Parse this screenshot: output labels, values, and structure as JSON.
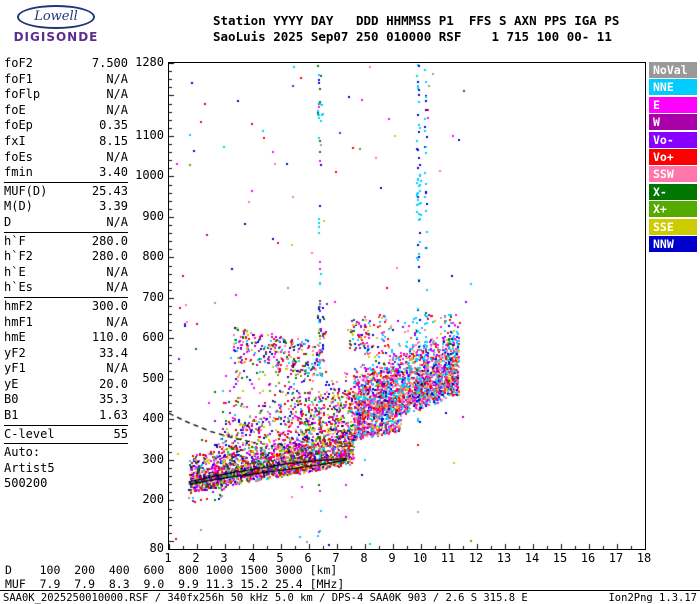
{
  "logo": {
    "line1": "Lowell",
    "line2": "DIGISONDE"
  },
  "header": {
    "line1": "Station YYYY DAY   DDD HHMMSS P1  FFS S AXN PPS IGA PS",
    "line2": "SaoLuis 2025 Sep07 250 010000 RSF    1 715 100 00- 11"
  },
  "params": {
    "groups": [
      {
        "rows": [
          {
            "l": "foF2",
            "v": "7.500"
          },
          {
            "l": "foF1",
            "v": "N/A"
          },
          {
            "l": "foFlp",
            "v": "N/A"
          },
          {
            "l": "foE",
            "v": "N/A"
          },
          {
            "l": "foEp",
            "v": "0.35"
          },
          {
            "l": "fxI",
            "v": "8.15"
          },
          {
            "l": "foEs",
            "v": "N/A"
          },
          {
            "l": "fmin",
            "v": "3.40"
          }
        ]
      },
      {
        "rows": [
          {
            "l": "MUF(D)",
            "v": "25.43"
          },
          {
            "l": "M(D)",
            "v": "3.39"
          },
          {
            "l": "D",
            "v": "N/A"
          }
        ]
      },
      {
        "rows": [
          {
            "l": "h`F",
            "v": "280.0"
          },
          {
            "l": "h`F2",
            "v": "280.0"
          },
          {
            "l": "h`E",
            "v": "N/A"
          },
          {
            "l": "h`Es",
            "v": "N/A"
          }
        ]
      },
      {
        "rows": [
          {
            "l": "hmF2",
            "v": "300.0"
          },
          {
            "l": "hmF1",
            "v": "N/A"
          },
          {
            "l": "hmE",
            "v": "110.0"
          },
          {
            "l": "yF2",
            "v": "33.4"
          },
          {
            "l": "yF1",
            "v": "N/A"
          },
          {
            "l": "yE",
            "v": "20.0"
          },
          {
            "l": "B0",
            "v": "35.3"
          },
          {
            "l": "B1",
            "v": "1.63"
          }
        ]
      },
      {
        "rows": [
          {
            "l": "C-level",
            "v": "55"
          }
        ]
      },
      {
        "rows": [
          {
            "l": "Auto:",
            "v": ""
          },
          {
            "l": "Artist5",
            "v": ""
          },
          {
            "l": "500200",
            "v": ""
          }
        ]
      }
    ]
  },
  "legend": [
    {
      "label": "NoVal",
      "color": "#999999"
    },
    {
      "label": "NNE",
      "color": "#00CCFF"
    },
    {
      "label": "E",
      "color": "#FF00FF"
    },
    {
      "label": "W",
      "color": "#AA00AA"
    },
    {
      "label": "Vo-",
      "color": "#8800FF"
    },
    {
      "label": "Vo+",
      "color": "#FF0000"
    },
    {
      "label": "SSW",
      "color": "#FF77AA"
    },
    {
      "label": "X-",
      "color": "#007700"
    },
    {
      "label": "X+",
      "color": "#55AA00"
    },
    {
      "label": "SSE",
      "color": "#CCCC00"
    },
    {
      "label": "NNW",
      "color": "#0000CC"
    }
  ],
  "footer": {
    "d_line": "D    100  200  400  600  800 1000 1500 3000 [km]",
    "muf_line": "MUF  7.9  7.9  8.3  9.0  9.9 11.3 15.2 25.4 [MHz]"
  },
  "statusbar": {
    "left": "SAA0K_2025250010000.RSF / 340fx256h 50 kHz 5.0 km / DPS-4 SAA0K 903 / 2.6 S 315.8 E",
    "right": "Ion2Png 1.3.17"
  },
  "chart_data": {
    "type": "scatter",
    "title": "",
    "xlabel": "",
    "ylabel": "",
    "xlim": [
      1,
      18
    ],
    "ylim": [
      80,
      1280
    ],
    "x_ticks": [
      1,
      2,
      3,
      4,
      5,
      6,
      7,
      8,
      9,
      10,
      11,
      12,
      13,
      14,
      15,
      16,
      17,
      18
    ],
    "y_tick_labels": [
      1280,
      1100,
      1000,
      900,
      800,
      700,
      600,
      500,
      400,
      300,
      200,
      80
    ],
    "x_minor_step": 0.5,
    "y_minor_step": 20,
    "point_size": 2,
    "seed": 42,
    "palettes": {
      "mix": [
        "#FF0000",
        "#FF0000",
        "#E00000",
        "#FF00FF",
        "#FF00FF",
        "#AA00AA",
        "#0000CC",
        "#0000CC",
        "#8800FF",
        "#007700",
        "#007700",
        "#55AA00",
        "#CCCC00",
        "#CCCC00",
        "#FF77AA",
        "#FF77AA",
        "#00CCFF",
        "#999999"
      ],
      "right": [
        "#00CCFF",
        "#00CCFF",
        "#00CCFF",
        "#FF0000",
        "#FF0000",
        "#FF4444",
        "#FF77AA",
        "#FF77AA",
        "#FF00FF",
        "#0000CC",
        "#CCCC00",
        "#8800FF"
      ],
      "diag": [
        "#FF00FF",
        "#FF0000",
        "#8800FF",
        "#007700",
        "#CCCC00",
        "#0000CC",
        "#FF77AA",
        "#00CCFF",
        "#AA00AA"
      ],
      "cyan": [
        "#00CCFF"
      ],
      "cyanblue": [
        "#00CCFF",
        "#00CCFF",
        "#0000CC"
      ],
      "darkcol": [
        "#0000CC",
        "#007700",
        "#00CCFF"
      ],
      "rfi": [
        "#00CCFF",
        "#00CCFF",
        "#0000CC",
        "#FF00FF",
        "#007700"
      ]
    },
    "clusters": [
      {
        "name": "F-trace core",
        "mode": "trace",
        "count": 2000,
        "x": [
          1.75,
          7.6
        ],
        "a": 232,
        "b": 12,
        "jitter": 14,
        "spread": 70,
        "pow": 2.2,
        "palette": "mix"
      },
      {
        "name": "F-trace spread",
        "mode": "trace",
        "count": 600,
        "x": [
          2.6,
          7.6
        ],
        "a": 258,
        "b": 14,
        "jitter": 20,
        "spread": 130,
        "pow": 1.6,
        "palette": "mix"
      },
      {
        "name": "mid scatter",
        "mode": "box",
        "count": 240,
        "x": [
          2.9,
          7.7
        ],
        "y": [
          360,
          520
        ],
        "palette": "mix"
      },
      {
        "name": "mid scatter right",
        "mode": "box",
        "count": 180,
        "x": [
          5.2,
          7.7
        ],
        "y": [
          350,
          470
        ],
        "palette": "mix"
      },
      {
        "name": "upper diagonal band",
        "mode": "trace",
        "count": 280,
        "x": [
          3.3,
          6.5
        ],
        "a": 585,
        "b": -12,
        "jitter": 42,
        "spread": 0,
        "pow": 1,
        "palette": "diag"
      },
      {
        "name": "right dense cluster",
        "mode": "trace",
        "count": 2300,
        "x": [
          7.6,
          11.35
        ],
        "a": 385,
        "b": 26,
        "jitter": 25,
        "spread": 120,
        "pow": 1.8,
        "palette": "right"
      },
      {
        "name": "right lower edge",
        "mode": "trace",
        "count": 200,
        "x": [
          7.6,
          9.3
        ],
        "a": 362,
        "b": 14,
        "jitter": 15,
        "spread": 0,
        "pow": 1,
        "palette": "right"
      },
      {
        "name": "right upper sparse",
        "mode": "box",
        "count": 150,
        "x": [
          8.0,
          11.4
        ],
        "y": [
          545,
          660
        ],
        "palette": "right"
      },
      {
        "name": "blob 7.8MHz 600km",
        "mode": "box",
        "count": 60,
        "x": [
          7.4,
          8.2
        ],
        "y": [
          570,
          645
        ],
        "palette": "diag"
      },
      {
        "name": "RFI line 6.4MHz",
        "mode": "vline",
        "count": 55,
        "cx": 6.38,
        "wx": 0.1,
        "y": [
          95,
          1275
        ],
        "palette": "rfi"
      },
      {
        "name": "6.4MHz colored blob",
        "mode": "vline",
        "count": 30,
        "cx": 6.45,
        "wx": 0.3,
        "y": [
          540,
          680
        ],
        "palette": "diag"
      },
      {
        "name": "RFI line 9.9MHz",
        "mode": "vline",
        "count": 60,
        "cx": 9.92,
        "wx": 0.12,
        "y": [
          390,
          1275
        ],
        "palette": "cyanblue"
      },
      {
        "name": "RFI line 10.2MHz",
        "mode": "vline",
        "count": 35,
        "cx": 10.18,
        "wx": 0.1,
        "y": [
          430,
          1270
        ],
        "palette": "cyanblue"
      },
      {
        "name": "streak 11MHz",
        "mode": "vline",
        "count": 30,
        "cx": 11.05,
        "wx": 0.15,
        "y": [
          470,
          660
        ],
        "palette": "darkcol"
      },
      {
        "name": "background noise",
        "mode": "box",
        "count": 130,
        "x": [
          1.1,
          11.8
        ],
        "y": [
          90,
          1275
        ],
        "palette": "mix"
      },
      {
        "name": "cyan patch 9.9 high",
        "mode": "box",
        "count": 14,
        "x": [
          9.85,
          10.0
        ],
        "y": [
          900,
          1010
        ],
        "palette": "cyan"
      },
      {
        "name": "cyan patch 6.4 high",
        "mode": "box",
        "count": 8,
        "x": [
          6.3,
          6.5
        ],
        "y": [
          1120,
          1180
        ],
        "palette": "cyan"
      },
      {
        "name": "below trace left",
        "mode": "box",
        "count": 20,
        "x": [
          1.7,
          3.2
        ],
        "y": [
          195,
          235
        ],
        "palette": "mix"
      }
    ],
    "curves": [
      {
        "style": "solid",
        "points": [
          [
            1.7,
            240
          ],
          [
            3.2,
            258
          ],
          [
            5.2,
            276
          ],
          [
            6.6,
            290
          ],
          [
            7.35,
            300
          ]
        ]
      },
      {
        "style": "solid",
        "points": [
          [
            1.7,
            246
          ],
          [
            3.2,
            268
          ],
          [
            5.2,
            290
          ],
          [
            6.6,
            300
          ],
          [
            7.35,
            303
          ]
        ]
      },
      {
        "style": "dashed",
        "points": [
          [
            1.0,
            415
          ],
          [
            1.7,
            392
          ],
          [
            2.5,
            370
          ],
          [
            3.3,
            354
          ],
          [
            4.1,
            342
          ]
        ]
      }
    ]
  }
}
